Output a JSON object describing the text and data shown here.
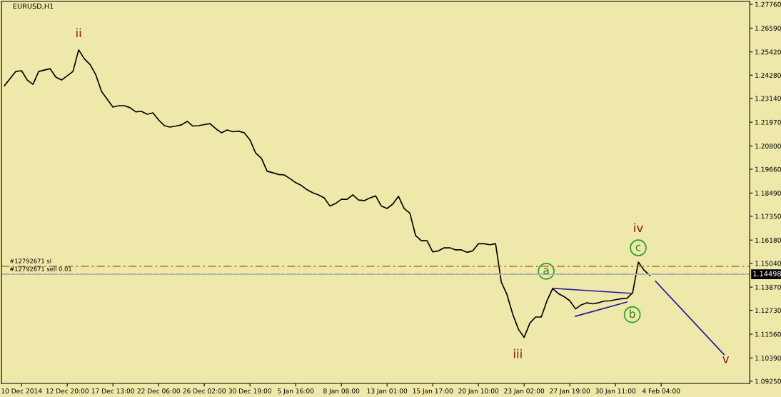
{
  "chart_data": {
    "type": "line",
    "title": "EURUSD,H1",
    "categories": [
      null,
      null,
      null,
      "10 Dec 2014",
      null,
      null,
      null,
      null,
      null,
      null,
      null,
      "12 Dec 20:00",
      null,
      null,
      null,
      null,
      null,
      null,
      null,
      "17 Dec 13:00",
      null,
      null,
      null,
      null,
      null,
      null,
      null,
      "22 Dec 06:00",
      null,
      null,
      null,
      null,
      null,
      null,
      null,
      "26 Dec 02:00",
      null,
      null,
      null,
      null,
      null,
      null,
      null,
      "30 Dec 19:00",
      null,
      null,
      null,
      null,
      null,
      null,
      null,
      "5 Jan 16:00",
      null,
      null,
      null,
      null,
      null,
      null,
      null,
      "8 Jan 08:00",
      null,
      null,
      null,
      null,
      null,
      null,
      null,
      "13 Jan 01:00",
      null,
      null,
      null,
      null,
      null,
      null,
      null,
      "15 Jan 17:00",
      null,
      null,
      null,
      null,
      null,
      null,
      null,
      "20 Jan 10:00",
      null,
      null,
      null,
      null,
      null,
      null,
      null,
      "23 Jan 02:00",
      null,
      null,
      null,
      null,
      null,
      null,
      null,
      "27 Jan 19:00",
      null,
      null,
      null,
      null,
      null,
      null,
      null,
      "30 Jan 11:00",
      null,
      null,
      null,
      null,
      null,
      null,
      null,
      "4 Feb 04:00",
      null,
      null,
      null,
      null,
      null,
      null,
      null,
      null,
      null,
      null,
      null,
      null,
      null,
      null,
      null
    ],
    "ylim": [
      1.0914,
      1.279
    ],
    "yticks": [
      {
        "value": 1.2776,
        "label": "1.27760"
      },
      {
        "value": 1.2659,
        "label": "1.26590"
      },
      {
        "value": 1.2542,
        "label": "1.25420"
      },
      {
        "value": 1.2428,
        "label": "1.24280"
      },
      {
        "value": 1.2314,
        "label": "1.23140"
      },
      {
        "value": 1.2197,
        "label": "1.21970"
      },
      {
        "value": 1.208,
        "label": "1.20800"
      },
      {
        "value": 1.1966,
        "label": "1.19660"
      },
      {
        "value": 1.1849,
        "label": "1.18490"
      },
      {
        "value": 1.1735,
        "label": "1.17350"
      },
      {
        "value": 1.1618,
        "label": "1.16180"
      },
      {
        "value": 1.1504,
        "label": "1.15040"
      },
      {
        "value": 1.1387,
        "label": "1.13870"
      },
      {
        "value": 1.1273,
        "label": "1.12730"
      },
      {
        "value": 1.1156,
        "label": "1.11560"
      },
      {
        "value": 1.1039,
        "label": "1.10390"
      },
      {
        "value": 1.0925,
        "label": "1.09250"
      }
    ],
    "grid": false,
    "legend": false,
    "marker": "none",
    "line_style": "solid",
    "series": [
      {
        "color": "#000000",
        "values": [
          1.2376,
          1.2411,
          1.2446,
          1.245,
          1.2404,
          1.2383,
          1.2446,
          1.2453,
          1.246,
          1.2418,
          1.2404,
          1.2425,
          1.2446,
          1.2552,
          1.2508,
          1.248,
          1.243,
          1.2348,
          1.231,
          1.2271,
          1.2278,
          1.2278,
          1.2268,
          1.2248,
          1.225,
          1.2236,
          1.2243,
          1.2208,
          1.218,
          1.2173,
          1.2178,
          1.2184,
          1.2201,
          1.2178,
          1.218,
          1.2185,
          1.219,
          1.2165,
          1.2145,
          1.2159,
          1.215,
          1.2153,
          1.2145,
          1.211,
          1.2045,
          1.202,
          1.1956,
          1.1949,
          1.194,
          1.1938,
          1.192,
          1.19,
          1.1886,
          1.1865,
          1.185,
          1.184,
          1.1825,
          1.1785,
          1.1798,
          1.1818,
          1.1818,
          1.184,
          1.1815,
          1.1812,
          1.1825,
          1.1835,
          1.1785,
          1.1773,
          1.1795,
          1.1833,
          1.1773,
          1.175,
          1.164,
          1.1615,
          1.1615,
          1.156,
          1.1565,
          1.158,
          1.158,
          1.157,
          1.157,
          1.1558,
          1.1565,
          1.16,
          1.16,
          1.1595,
          1.16,
          1.1412,
          1.135,
          1.1254,
          1.118,
          1.114,
          1.121,
          1.124,
          1.124,
          1.132,
          1.138,
          1.1355,
          1.134,
          1.132,
          1.128,
          1.13,
          1.131,
          1.1305,
          1.131,
          1.1318,
          1.132,
          1.1325,
          1.133,
          1.1332,
          1.136,
          1.151,
          1.147,
          1.1445,
          null,
          null,
          null,
          null,
          null,
          null,
          null,
          null,
          null,
          null,
          null,
          null,
          null,
          null,
          null,
          null,
          null
        ]
      },
      {
        "color": "#1c1c9c",
        "values": [
          null,
          null,
          null,
          null,
          null,
          null,
          null,
          null,
          null,
          null,
          null,
          null,
          null,
          null,
          null,
          null,
          null,
          null,
          null,
          null,
          null,
          null,
          null,
          null,
          null,
          null,
          null,
          null,
          null,
          null,
          null,
          null,
          null,
          null,
          null,
          null,
          null,
          null,
          null,
          null,
          null,
          null,
          null,
          null,
          null,
          null,
          null,
          null,
          null,
          null,
          null,
          null,
          null,
          null,
          null,
          null,
          null,
          null,
          null,
          null,
          null,
          null,
          null,
          null,
          null,
          null,
          null,
          null,
          null,
          null,
          null,
          null,
          null,
          null,
          null,
          null,
          null,
          null,
          null,
          null,
          null,
          null,
          null,
          null,
          null,
          null,
          null,
          null,
          null,
          null,
          null,
          null,
          null,
          null,
          null,
          null,
          1.1381,
          null,
          null,
          null,
          null,
          null,
          null,
          null,
          null,
          null,
          null,
          null,
          null,
          null,
          1.1356,
          null,
          null,
          null,
          null,
          null,
          null,
          null,
          null,
          null,
          null,
          null,
          null,
          null,
          null,
          null,
          null,
          null,
          null,
          null,
          null
        ]
      },
      {
        "color": "#1c1c9c",
        "values": [
          null,
          null,
          null,
          null,
          null,
          null,
          null,
          null,
          null,
          null,
          null,
          null,
          null,
          null,
          null,
          null,
          null,
          null,
          null,
          null,
          null,
          null,
          null,
          null,
          null,
          null,
          null,
          null,
          null,
          null,
          null,
          null,
          null,
          null,
          null,
          null,
          null,
          null,
          null,
          null,
          null,
          null,
          null,
          null,
          null,
          null,
          null,
          null,
          null,
          null,
          null,
          null,
          null,
          null,
          null,
          null,
          null,
          null,
          null,
          null,
          null,
          null,
          null,
          null,
          null,
          null,
          null,
          null,
          null,
          null,
          null,
          null,
          null,
          null,
          null,
          null,
          null,
          null,
          null,
          null,
          null,
          null,
          null,
          null,
          null,
          null,
          null,
          null,
          null,
          null,
          null,
          null,
          null,
          null,
          null,
          null,
          null,
          null,
          null,
          null,
          1.1244,
          null,
          null,
          null,
          null,
          null,
          null,
          null,
          null,
          1.1314,
          null,
          null,
          null,
          null,
          null,
          null,
          null,
          null,
          null,
          null,
          null,
          null,
          null,
          null,
          null,
          null,
          null,
          null,
          null,
          null,
          null
        ]
      },
      {
        "color": "#1c1c9c",
        "values": [
          null,
          null,
          null,
          null,
          null,
          null,
          null,
          null,
          null,
          null,
          null,
          null,
          null,
          null,
          null,
          null,
          null,
          null,
          null,
          null,
          null,
          null,
          null,
          null,
          null,
          null,
          null,
          null,
          null,
          null,
          null,
          null,
          null,
          null,
          null,
          null,
          null,
          null,
          null,
          null,
          null,
          null,
          null,
          null,
          null,
          null,
          null,
          null,
          null,
          null,
          null,
          null,
          null,
          null,
          null,
          null,
          null,
          null,
          null,
          null,
          null,
          null,
          null,
          null,
          null,
          null,
          null,
          null,
          null,
          null,
          null,
          null,
          null,
          null,
          null,
          null,
          null,
          null,
          null,
          null,
          null,
          null,
          null,
          null,
          null,
          null,
          null,
          null,
          null,
          null,
          null,
          null,
          null,
          null,
          null,
          null,
          null,
          null,
          null,
          null,
          null,
          null,
          null,
          null,
          null,
          null,
          null,
          null,
          null,
          null,
          null,
          null,
          null,
          null,
          1.1416,
          null,
          null,
          null,
          null,
          null,
          null,
          null,
          null,
          null,
          null,
          null,
          1.1056,
          null,
          null,
          null,
          null
        ]
      }
    ],
    "ref_lines": [
      {
        "axis": "y",
        "value": 1.1489,
        "label": "#12792671 sl",
        "color": "#d2691e",
        "line_style": "dashed"
      },
      {
        "axis": "y",
        "value": 1.145,
        "label": "#12792671 sell 0.01",
        "color": "#008000",
        "line_style": "dashed"
      },
      {
        "axis": "y",
        "value": 1.14498,
        "label": "1.14498",
        "color": "#b4b4b4",
        "line_style": "solid"
      }
    ],
    "annotations": [
      "ii",
      "iii",
      "iv",
      "v",
      {
        "text": "a",
        "y": 1.1465
      },
      "b",
      "c"
    ]
  }
}
